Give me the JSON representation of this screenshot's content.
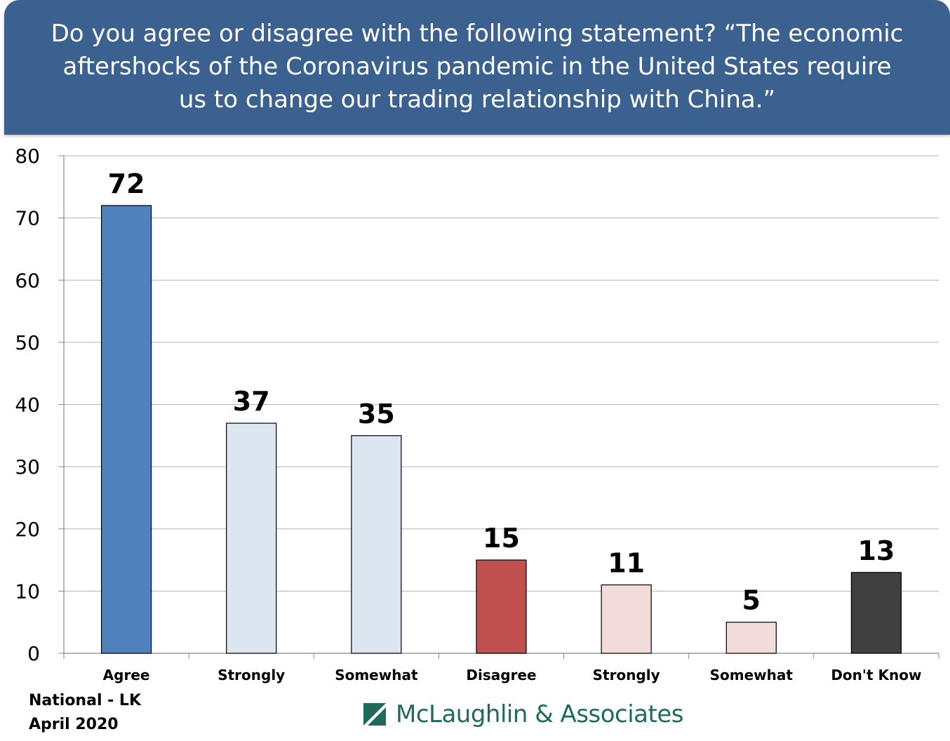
{
  "header": {
    "title": "Do you agree or disagree with the following statement? “The economic aftershocks of the Coronavirus pandemic in the United States require us to change our trading relationship with China.”"
  },
  "chart_data": {
    "type": "bar",
    "categories": [
      "Agree",
      "Strongly",
      "Somewhat",
      "Disagree",
      "Strongly",
      "Somewhat",
      "Don't Know"
    ],
    "values": [
      72,
      37,
      35,
      15,
      11,
      5,
      13
    ],
    "colors": [
      "#4f81bd",
      "#dce6f1",
      "#dce6f1",
      "#c0504d",
      "#f2dcdb",
      "#f2dcdb",
      "#404040"
    ],
    "ylim": [
      0,
      80
    ],
    "yticks": [
      0,
      10,
      20,
      30,
      40,
      50,
      60,
      70,
      80
    ],
    "grid": true,
    "data_labels": true
  },
  "footer": {
    "line1": "National - LK",
    "line2": "April 2020",
    "logo_text": "McLaughlin & Associates",
    "logo_color": "#1f6b5a"
  }
}
